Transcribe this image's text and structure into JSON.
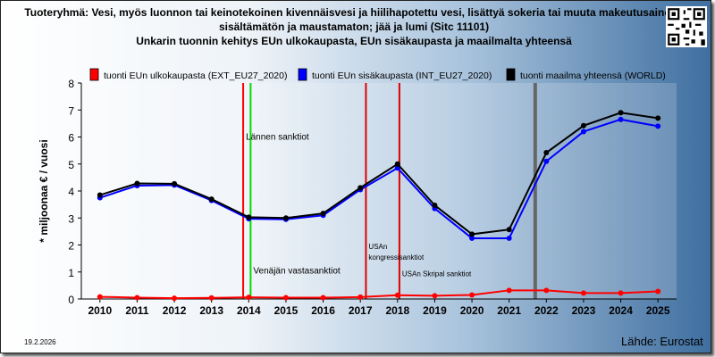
{
  "title_lines": [
    "Tuoteryhmä: Vesi, myös luonnon tai keinotekoinen kivennäisvesi ja hiilihapotettu vesi, lisättyä sokeria tai muuta makeutusainetta",
    "sisältämätön ja maustamaton; jää ja lumi (Sitc 11101)",
    "Unkarin tuonnin kehitys EUn ulkokaupasta, EUn sisäkaupasta ja maailmalta yhteensä"
  ],
  "date": "19.2.2026",
  "source": "Lähde: Eurostat",
  "chart_data": {
    "type": "line",
    "x": [
      2010,
      2011,
      2012,
      2013,
      2014,
      2015,
      2016,
      2017,
      2018,
      2019,
      2020,
      2021,
      2022,
      2023,
      2024,
      2025
    ],
    "ylabel": "* miljoonaa € / vuosi",
    "ylim": [
      0,
      8
    ],
    "yticks": [
      0,
      1,
      2,
      3,
      4,
      5,
      6,
      7,
      8
    ],
    "grid": false,
    "legend_position": "top",
    "series": [
      {
        "name": "tuonti EUn ulkokaupasta (EXT_EU27_2020)",
        "color": "#ff0000",
        "values": [
          0.08,
          0.05,
          0.03,
          0.04,
          0.06,
          0.05,
          0.05,
          0.07,
          0.14,
          0.12,
          0.15,
          0.32,
          0.32,
          0.22,
          0.22,
          0.28
        ]
      },
      {
        "name": "tuonti EUn sisäkaupasta (INT_EU27_2020)",
        "color": "#0000ff",
        "values": [
          3.75,
          4.2,
          4.22,
          3.65,
          2.97,
          2.95,
          3.1,
          4.05,
          4.85,
          3.35,
          2.25,
          2.25,
          5.1,
          6.2,
          6.65,
          6.4
        ]
      },
      {
        "name": "tuonti maailma yhteensä (WORLD)",
        "color": "#000000",
        "values": [
          3.85,
          4.28,
          4.27,
          3.7,
          3.03,
          3.0,
          3.17,
          4.12,
          5.0,
          3.47,
          2.4,
          2.57,
          5.42,
          6.42,
          6.9,
          6.7
        ]
      }
    ],
    "events": [
      {
        "label": "Lännen sanktiot",
        "x": 2013.85,
        "color": "#ff0000",
        "label_y": 5.9
      },
      {
        "label": "Venäjän vastasanktiot",
        "x": 2014.05,
        "color": "#00dd00",
        "label_y": 0.95
      },
      {
        "label": "USAn kongressisanktiot",
        "x": 2017.15,
        "color": "#dd0000",
        "label_y": 1.45
      },
      {
        "label": "USAn Skripal sanktiot",
        "x": 2018.05,
        "color": "#dd0000",
        "label_y": 0.85
      },
      {
        "label": "",
        "x": 2021.7,
        "color": "#666666",
        "label_y": 0
      }
    ]
  }
}
